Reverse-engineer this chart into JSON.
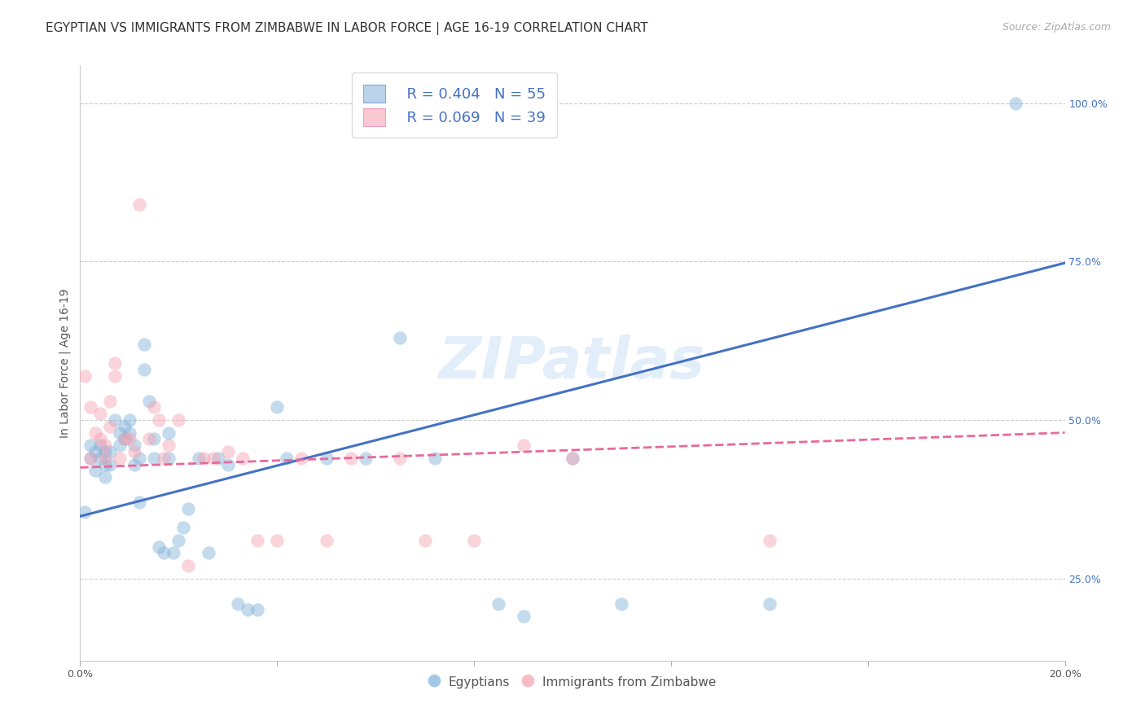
{
  "title": "EGYPTIAN VS IMMIGRANTS FROM ZIMBABWE IN LABOR FORCE | AGE 16-19 CORRELATION CHART",
  "source": "Source: ZipAtlas.com",
  "ylabel": "In Labor Force | Age 16-19",
  "xlim": [
    0.0,
    0.2
  ],
  "ylim": [
    0.12,
    1.06
  ],
  "blue_scatter_x": [
    0.001,
    0.002,
    0.002,
    0.003,
    0.003,
    0.004,
    0.004,
    0.005,
    0.005,
    0.005,
    0.006,
    0.006,
    0.007,
    0.008,
    0.008,
    0.009,
    0.009,
    0.01,
    0.01,
    0.011,
    0.011,
    0.012,
    0.012,
    0.013,
    0.013,
    0.014,
    0.015,
    0.015,
    0.016,
    0.017,
    0.018,
    0.018,
    0.019,
    0.02,
    0.021,
    0.022,
    0.024,
    0.026,
    0.028,
    0.03,
    0.032,
    0.034,
    0.036,
    0.04,
    0.042,
    0.05,
    0.058,
    0.065,
    0.072,
    0.085,
    0.09,
    0.1,
    0.11,
    0.14,
    0.19
  ],
  "blue_scatter_y": [
    0.355,
    0.44,
    0.46,
    0.42,
    0.45,
    0.44,
    0.46,
    0.41,
    0.43,
    0.45,
    0.43,
    0.45,
    0.5,
    0.46,
    0.48,
    0.47,
    0.49,
    0.48,
    0.5,
    0.43,
    0.46,
    0.37,
    0.44,
    0.58,
    0.62,
    0.53,
    0.44,
    0.47,
    0.3,
    0.29,
    0.44,
    0.48,
    0.29,
    0.31,
    0.33,
    0.36,
    0.44,
    0.29,
    0.44,
    0.43,
    0.21,
    0.2,
    0.2,
    0.52,
    0.44,
    0.44,
    0.44,
    0.63,
    0.44,
    0.21,
    0.19,
    0.44,
    0.21,
    0.21,
    1.0
  ],
  "pink_scatter_x": [
    0.001,
    0.002,
    0.002,
    0.003,
    0.004,
    0.004,
    0.005,
    0.005,
    0.006,
    0.006,
    0.007,
    0.007,
    0.008,
    0.009,
    0.01,
    0.011,
    0.012,
    0.014,
    0.015,
    0.016,
    0.017,
    0.018,
    0.02,
    0.022,
    0.025,
    0.027,
    0.03,
    0.033,
    0.036,
    0.04,
    0.045,
    0.05,
    0.055,
    0.065,
    0.07,
    0.08,
    0.09,
    0.1,
    0.14
  ],
  "pink_scatter_y": [
    0.57,
    0.44,
    0.52,
    0.48,
    0.47,
    0.51,
    0.44,
    0.46,
    0.49,
    0.53,
    0.57,
    0.59,
    0.44,
    0.47,
    0.47,
    0.45,
    0.84,
    0.47,
    0.52,
    0.5,
    0.44,
    0.46,
    0.5,
    0.27,
    0.44,
    0.44,
    0.45,
    0.44,
    0.31,
    0.31,
    0.44,
    0.31,
    0.44,
    0.44,
    0.31,
    0.31,
    0.46,
    0.44,
    0.31
  ],
  "blue_line_x": [
    0.0,
    0.2
  ],
  "blue_line_y": [
    0.348,
    0.748
  ],
  "pink_line_x": [
    0.0,
    0.2
  ],
  "pink_line_y": [
    0.425,
    0.48
  ],
  "blue_color": "#7EB0D9",
  "pink_color": "#F5A0B0",
  "blue_line_color": "#4472C4",
  "pink_line_color": "#E8699A",
  "legend_r_blue": "R = 0.404",
  "legend_n_blue": "N = 55",
  "legend_r_pink": "R = 0.069",
  "legend_n_pink": "N = 39",
  "legend_label_blue": "Egyptians",
  "legend_label_pink": "Immigrants from Zimbabwe",
  "watermark": "ZIPatlas",
  "title_fontsize": 11,
  "axis_label_fontsize": 10,
  "legend_text_color": "#4472C4"
}
